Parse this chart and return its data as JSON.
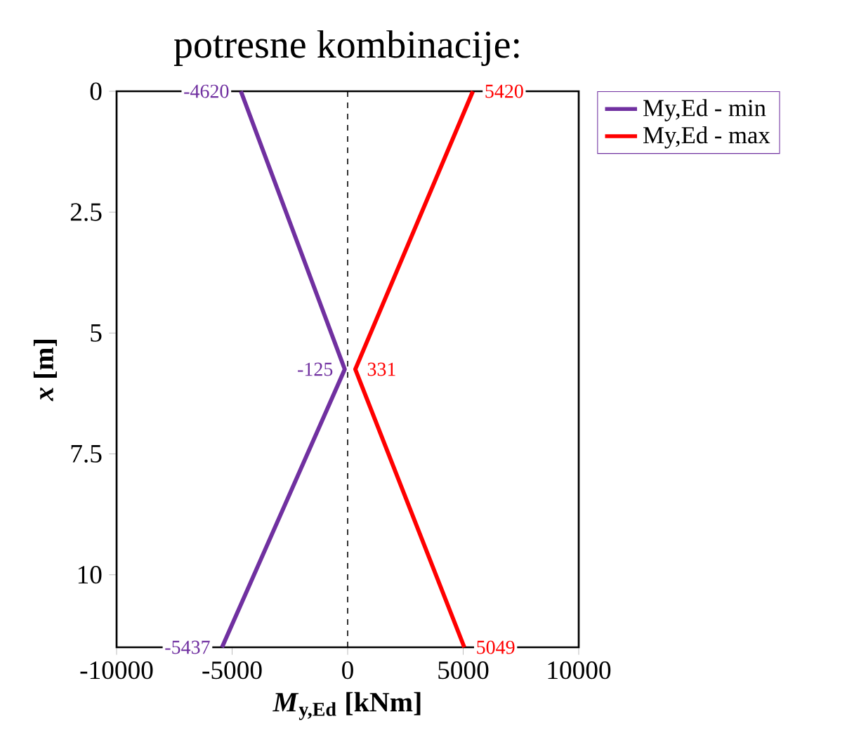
{
  "chart_data": {
    "type": "line",
    "title": "potresne kombinacije:",
    "orientation": "horizontal",
    "xlabel": "*M*$_{y,Ed}$ [kNm]",
    "ylabel": "*x* [m]",
    "series": [
      {
        "name": "My,Ed - min",
        "color": "#7030a0",
        "x": [
          0,
          5.75,
          11.5
        ],
        "values": [
          -4620,
          -125,
          -5437
        ]
      },
      {
        "name": "My,Ed - max",
        "color": "#ff0000",
        "x": [
          0,
          5.75,
          11.5
        ],
        "values": [
          5420,
          331,
          5049
        ]
      }
    ],
    "data_labels": true,
    "xlim": [
      -10000,
      10000
    ],
    "xticks": [
      -10000,
      -5000,
      0,
      5000,
      10000
    ],
    "ylim": [
      11.5,
      0
    ],
    "yticks": [
      0,
      2.5,
      5,
      7.5,
      10
    ],
    "ref_lines": [
      {
        "axis": "x",
        "value": 0,
        "line_style": "dashed",
        "color": "#000000"
      }
    ],
    "grid": false,
    "legend": "top right",
    "marker": "none",
    "line_style": "solid"
  }
}
